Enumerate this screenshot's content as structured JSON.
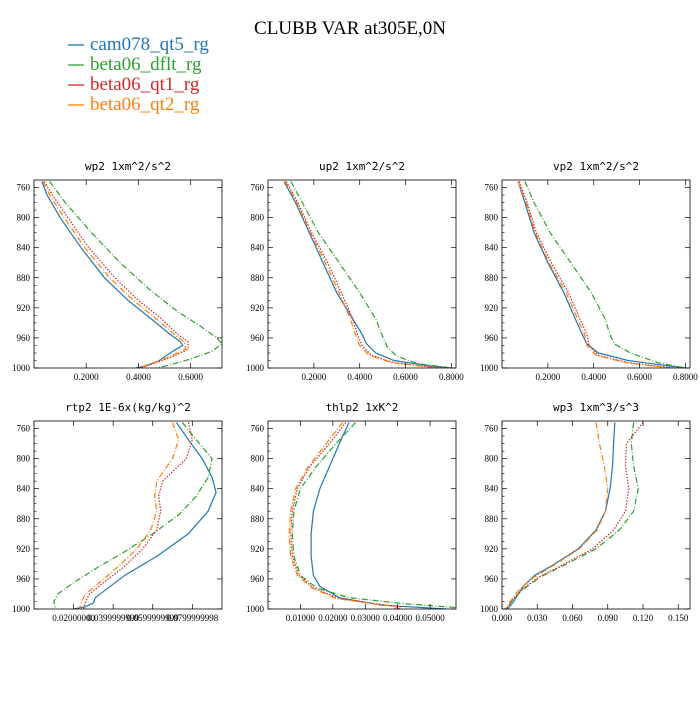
{
  "title": "CLUBB VAR at305E,0N",
  "legend": [
    {
      "name": "cam078_qt5_rg",
      "color": "#1f77b4",
      "dash": "solid"
    },
    {
      "name": "beta06_dflt_rg",
      "color": "#2ca02c",
      "dash": "dashdot"
    },
    {
      "name": "beta06_qt1_rg",
      "color": "#d62728",
      "dash": "dotted"
    },
    {
      "name": "beta06_qt2_rg",
      "color": "#ff7f0e",
      "dash": "dashdot"
    }
  ],
  "chart_data": [
    {
      "type": "line",
      "title": "wp2  1xm^2/s^2",
      "xlim": [
        0.0,
        0.72
      ],
      "ylim": [
        1000,
        750
      ],
      "xticks": [
        0.2,
        0.4,
        0.6
      ],
      "xtick_labels": [
        "0.2000",
        "0.4000",
        "0.6000"
      ],
      "yticks": [
        760,
        800,
        840,
        880,
        920,
        960,
        1000
      ],
      "ytick_labels": [
        "760",
        "800",
        "840",
        "880",
        "920",
        "960",
        "1000"
      ],
      "series": [
        {
          "name": "cam078_qt5_rg",
          "x": [
            0.03,
            0.05,
            0.1,
            0.18,
            0.27,
            0.36,
            0.45,
            0.52,
            0.56,
            0.57,
            0.53,
            0.48,
            0.43,
            0.39
          ],
          "y": [
            752,
            770,
            800,
            840,
            880,
            910,
            935,
            955,
            965,
            970,
            978,
            990,
            997,
            1000
          ]
        },
        {
          "name": "beta06_dflt_rg",
          "x": [
            0.06,
            0.12,
            0.22,
            0.33,
            0.44,
            0.55,
            0.64,
            0.7,
            0.72,
            0.68,
            0.6,
            0.52,
            0.47
          ],
          "y": [
            752,
            780,
            820,
            860,
            895,
            925,
            945,
            960,
            968,
            978,
            988,
            996,
            1000
          ]
        },
        {
          "name": "beta06_qt1_rg",
          "x": [
            0.04,
            0.07,
            0.13,
            0.21,
            0.31,
            0.4,
            0.49,
            0.55,
            0.59,
            0.59,
            0.53,
            0.46,
            0.41
          ],
          "y": [
            752,
            770,
            800,
            840,
            880,
            910,
            935,
            955,
            965,
            975,
            985,
            994,
            1000
          ]
        },
        {
          "name": "beta06_qt2_rg",
          "x": [
            0.035,
            0.06,
            0.115,
            0.195,
            0.29,
            0.38,
            0.47,
            0.535,
            0.575,
            0.58,
            0.52,
            0.45,
            0.4
          ],
          "y": [
            752,
            770,
            800,
            840,
            880,
            910,
            935,
            955,
            965,
            975,
            985,
            994,
            1000
          ]
        }
      ]
    },
    {
      "type": "line",
      "title": "up2  1xm^2/s^2",
      "xlim": [
        0.0,
        0.82
      ],
      "ylim": [
        1000,
        750
      ],
      "xticks": [
        0.2,
        0.4,
        0.6,
        0.8
      ],
      "xtick_labels": [
        "0.2000",
        "0.4000",
        "0.6000",
        "0.8000"
      ],
      "yticks": [
        760,
        800,
        840,
        880,
        920,
        960,
        1000
      ],
      "ytick_labels": [
        "760",
        "800",
        "840",
        "880",
        "920",
        "960",
        "1000"
      ],
      "series": [
        {
          "name": "cam078_qt5_rg",
          "x": [
            0.07,
            0.12,
            0.18,
            0.24,
            0.3,
            0.37,
            0.41,
            0.43,
            0.47,
            0.55,
            0.7,
            0.8
          ],
          "y": [
            752,
            780,
            820,
            860,
            900,
            935,
            955,
            968,
            980,
            990,
            997,
            1000
          ]
        },
        {
          "name": "beta06_dflt_rg",
          "x": [
            0.1,
            0.15,
            0.22,
            0.31,
            0.4,
            0.47,
            0.5,
            0.52,
            0.56,
            0.65,
            0.8
          ],
          "y": [
            752,
            780,
            820,
            860,
            900,
            935,
            958,
            972,
            984,
            994,
            1000
          ]
        },
        {
          "name": "beta06_qt1_rg",
          "x": [
            0.08,
            0.13,
            0.19,
            0.26,
            0.32,
            0.37,
            0.39,
            0.41,
            0.45,
            0.55,
            0.75
          ],
          "y": [
            752,
            780,
            820,
            860,
            900,
            935,
            955,
            970,
            983,
            993,
            1000
          ]
        },
        {
          "name": "beta06_qt2_rg",
          "x": [
            0.075,
            0.125,
            0.185,
            0.25,
            0.31,
            0.36,
            0.38,
            0.4,
            0.44,
            0.54,
            0.74
          ],
          "y": [
            752,
            780,
            820,
            860,
            900,
            935,
            955,
            970,
            983,
            993,
            1000
          ]
        }
      ]
    },
    {
      "type": "line",
      "title": "vp2  1xm^2/s^2",
      "xlim": [
        0.0,
        0.82
      ],
      "ylim": [
        1000,
        750
      ],
      "xticks": [
        0.2,
        0.4,
        0.6,
        0.8
      ],
      "xtick_labels": [
        "0.2000",
        "0.4000",
        "0.6000",
        "0.8000"
      ],
      "yticks": [
        760,
        800,
        840,
        880,
        920,
        960,
        1000
      ],
      "ytick_labels": [
        "760",
        "800",
        "840",
        "880",
        "920",
        "960",
        "1000"
      ],
      "series": [
        {
          "name": "cam078_qt5_rg",
          "x": [
            0.07,
            0.1,
            0.14,
            0.2,
            0.27,
            0.32,
            0.35,
            0.37,
            0.42,
            0.55,
            0.72,
            0.8
          ],
          "y": [
            752,
            780,
            820,
            860,
            900,
            935,
            955,
            968,
            980,
            990,
            997,
            1000
          ]
        },
        {
          "name": "beta06_dflt_rg",
          "x": [
            0.1,
            0.14,
            0.21,
            0.3,
            0.39,
            0.45,
            0.47,
            0.49,
            0.56,
            0.68,
            0.8
          ],
          "y": [
            752,
            780,
            820,
            860,
            900,
            935,
            955,
            968,
            980,
            993,
            1000
          ]
        },
        {
          "name": "beta06_qt1_rg",
          "x": [
            0.075,
            0.11,
            0.15,
            0.215,
            0.29,
            0.34,
            0.37,
            0.38,
            0.42,
            0.55,
            0.75
          ],
          "y": [
            752,
            780,
            820,
            860,
            900,
            935,
            955,
            970,
            983,
            993,
            1000
          ]
        },
        {
          "name": "beta06_qt2_rg",
          "x": [
            0.07,
            0.105,
            0.145,
            0.205,
            0.28,
            0.33,
            0.36,
            0.37,
            0.41,
            0.54,
            0.74
          ],
          "y": [
            752,
            780,
            820,
            860,
            900,
            935,
            955,
            970,
            983,
            993,
            1000
          ]
        }
      ]
    },
    {
      "type": "line",
      "title": "rtp2  1E-6x(kg/kg)^2",
      "xlim": [
        0.0,
        0.095
      ],
      "ylim": [
        1000,
        750
      ],
      "xticks": [
        0.02,
        0.04,
        0.06,
        0.08
      ],
      "xtick_labels": [
        "0.02000000",
        "0.0399999999",
        "0.0599999999",
        "0.0799999998"
      ],
      "yticks": [
        760,
        800,
        840,
        880,
        920,
        960,
        1000
      ],
      "ytick_labels": [
        "760",
        "800",
        "840",
        "880",
        "920",
        "960",
        "1000"
      ],
      "series": [
        {
          "name": "cam078_qt5_rg",
          "x": [
            0.072,
            0.078,
            0.085,
            0.09,
            0.092,
            0.088,
            0.078,
            0.062,
            0.046,
            0.036,
            0.031,
            0.03,
            0.026,
            0.02
          ],
          "y": [
            752,
            775,
            800,
            825,
            845,
            870,
            900,
            930,
            955,
            975,
            985,
            992,
            997,
            1000
          ]
        },
        {
          "name": "beta06_dflt_rg",
          "x": [
            0.075,
            0.082,
            0.09,
            0.088,
            0.082,
            0.073,
            0.06,
            0.045,
            0.032,
            0.02,
            0.012,
            0.01,
            0.011
          ],
          "y": [
            752,
            775,
            800,
            825,
            850,
            875,
            900,
            925,
            945,
            965,
            980,
            990,
            1000
          ]
        },
        {
          "name": "beta06_qt1_rg",
          "x": [
            0.078,
            0.08,
            0.077,
            0.065,
            0.063,
            0.064,
            0.062,
            0.055,
            0.045,
            0.035,
            0.028,
            0.026,
            0.025
          ],
          "y": [
            752,
            775,
            800,
            830,
            850,
            870,
            895,
            920,
            945,
            965,
            980,
            990,
            1000
          ]
        },
        {
          "name": "beta06_qt2_rg",
          "x": [
            0.07,
            0.073,
            0.07,
            0.062,
            0.061,
            0.062,
            0.059,
            0.052,
            0.042,
            0.033,
            0.026,
            0.024,
            0.023
          ],
          "y": [
            752,
            775,
            800,
            830,
            850,
            870,
            895,
            920,
            945,
            965,
            980,
            990,
            1000
          ]
        }
      ]
    },
    {
      "type": "line",
      "title": "thlp2  1xK^2",
      "xlim": [
        0.0,
        0.058
      ],
      "ylim": [
        1000,
        750
      ],
      "xticks": [
        0.01,
        0.02,
        0.03,
        0.04,
        0.05
      ],
      "xtick_labels": [
        "0.01000",
        "0.02000",
        "0.03000",
        "0.04000",
        "0.05000"
      ],
      "yticks": [
        760,
        800,
        840,
        880,
        920,
        960,
        1000
      ],
      "ytick_labels": [
        "760",
        "800",
        "840",
        "880",
        "920",
        "960",
        "1000"
      ],
      "series": [
        {
          "name": "cam078_qt5_rg",
          "x": [
            0.025,
            0.022,
            0.019,
            0.016,
            0.014,
            0.0133,
            0.0133,
            0.014,
            0.016,
            0.022,
            0.035,
            0.055
          ],
          "y": [
            752,
            780,
            810,
            840,
            870,
            900,
            930,
            955,
            970,
            985,
            995,
            1000
          ]
        },
        {
          "name": "beta06_dflt_rg",
          "x": [
            0.027,
            0.021,
            0.015,
            0.01,
            0.008,
            0.0075,
            0.008,
            0.01,
            0.015,
            0.025,
            0.042,
            0.058
          ],
          "y": [
            752,
            780,
            810,
            840,
            870,
            900,
            930,
            955,
            972,
            985,
            993,
            998
          ]
        },
        {
          "name": "beta06_qt1_rg",
          "x": [
            0.024,
            0.019,
            0.013,
            0.009,
            0.0075,
            0.007,
            0.0075,
            0.0095,
            0.014,
            0.022,
            0.035,
            0.041,
            0.04
          ],
          "y": [
            752,
            780,
            810,
            840,
            870,
            900,
            930,
            955,
            972,
            986,
            994,
            997,
            1000
          ]
        },
        {
          "name": "beta06_qt2_rg",
          "x": [
            0.023,
            0.018,
            0.0125,
            0.0085,
            0.007,
            0.0065,
            0.007,
            0.009,
            0.0135,
            0.021,
            0.034,
            0.04,
            0.039
          ],
          "y": [
            752,
            780,
            810,
            840,
            870,
            900,
            930,
            955,
            972,
            986,
            994,
            997,
            1000
          ]
        }
      ]
    },
    {
      "type": "line",
      "title": "wp3  1xm^3/s^3",
      "xlim": [
        0.0,
        0.16
      ],
      "ylim": [
        1000,
        750
      ],
      "xticks": [
        0.0,
        0.03,
        0.06,
        0.09,
        0.12,
        0.15
      ],
      "xtick_labels": [
        "0.000",
        "0.030",
        "0.060",
        "0.090",
        "0.120",
        "0.150"
      ],
      "yticks": [
        760,
        800,
        840,
        880,
        920,
        960,
        1000
      ],
      "ytick_labels": [
        "760",
        "800",
        "840",
        "880",
        "920",
        "960",
        "1000"
      ],
      "series": [
        {
          "name": "cam078_qt5_rg",
          "x": [
            0.096,
            0.095,
            0.094,
            0.092,
            0.088,
            0.08,
            0.065,
            0.045,
            0.028,
            0.018,
            0.013,
            0.01,
            0.007,
            0.004
          ],
          "y": [
            752,
            780,
            810,
            840,
            870,
            895,
            920,
            940,
            955,
            970,
            982,
            990,
            996,
            1000
          ]
        },
        {
          "name": "beta06_dflt_rg",
          "x": [
            0.112,
            0.11,
            0.112,
            0.116,
            0.112,
            0.1,
            0.08,
            0.055,
            0.032,
            0.017,
            0.008,
            0.004
          ],
          "y": [
            752,
            780,
            810,
            840,
            870,
            895,
            920,
            940,
            958,
            975,
            990,
            1000
          ]
        },
        {
          "name": "beta06_qt1_rg",
          "x": [
            0.12,
            0.106,
            0.105,
            0.108,
            0.105,
            0.095,
            0.077,
            0.053,
            0.031,
            0.016,
            0.008,
            0.004
          ],
          "y": [
            752,
            780,
            810,
            840,
            870,
            895,
            920,
            940,
            958,
            975,
            990,
            1000
          ]
        },
        {
          "name": "beta06_qt2_rg",
          "x": [
            0.08,
            0.083,
            0.087,
            0.09,
            0.088,
            0.081,
            0.066,
            0.046,
            0.027,
            0.014,
            0.007,
            0.003
          ],
          "y": [
            752,
            780,
            810,
            840,
            870,
            895,
            920,
            940,
            958,
            975,
            990,
            1000
          ]
        }
      ]
    }
  ]
}
